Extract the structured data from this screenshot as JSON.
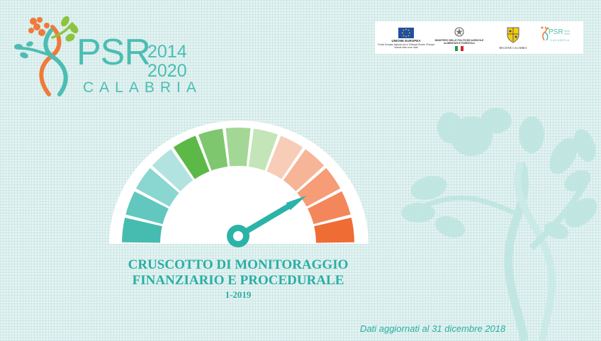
{
  "logo": {
    "name": "PSR",
    "year_start": "2014",
    "year_end": "2020",
    "region": "CALABRIA"
  },
  "partners": {
    "eu_title": "UNIONE EUROPEA",
    "eu_caption": "Fondo Europeo Agricolo per lo Sviluppo Rurale: l'Europa investe nelle zone rurali",
    "ministry": "MINISTERO DELLE POLITICHE AGRICOLE ALIMENTARI E FORESTALI",
    "regione": "REGIONE CALABRIA",
    "mini_psr": "PSR",
    "mini_years": "2014 2020",
    "mini_region": "CALABRIA"
  },
  "gauge": {
    "segments": [
      "#46bcb0",
      "#62c7be",
      "#8ad6d0",
      "#b3e3e0",
      "#5cb947",
      "#7fc76e",
      "#a3d795",
      "#c3e5b7",
      "#f7cdb7",
      "#f7b597",
      "#f69c77",
      "#f3875b",
      "#ef6c35"
    ],
    "needle_fraction": 0.83,
    "needle_color": "#2bb3a7"
  },
  "title": {
    "line1": "CRUSCOTTO DI MONITORAGGIO",
    "line2": "FINANZIARIO E PROCEDURALE",
    "period": "1-2019"
  },
  "footer": {
    "updated": "Dati aggiornati al 31 dicembre 2018"
  },
  "colors": {
    "accent": "#2aaea3",
    "background": "#e4f3f2",
    "logo_orange": "#f07a3a",
    "logo_green": "#8cc43f"
  }
}
